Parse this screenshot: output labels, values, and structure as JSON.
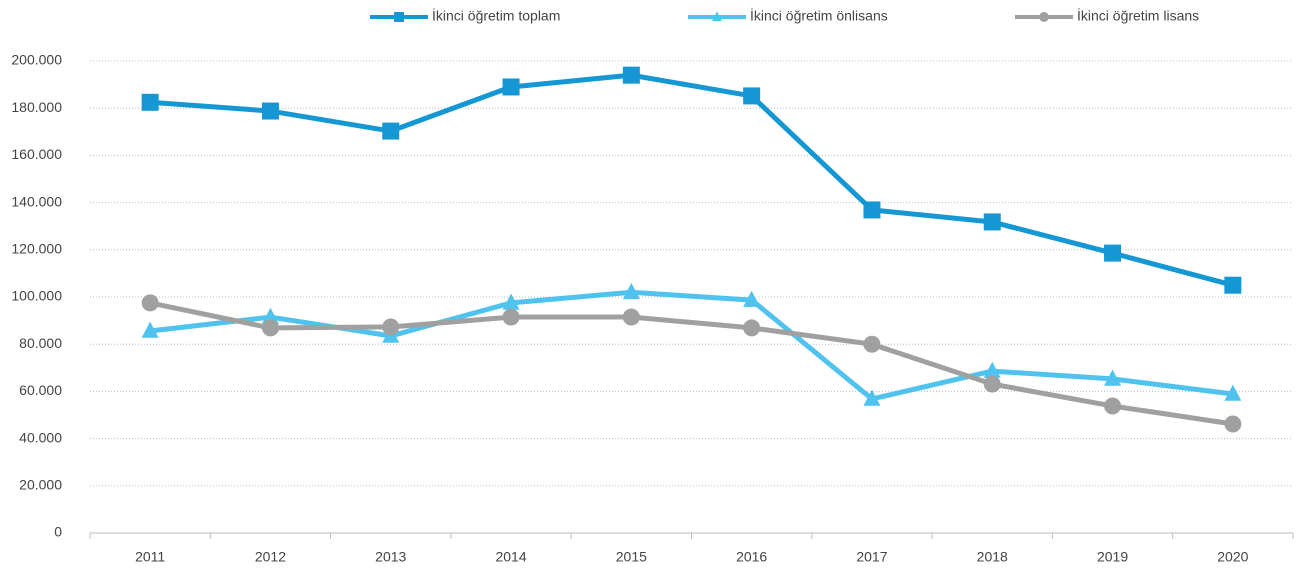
{
  "chart_data": {
    "type": "line",
    "categories": [
      "2011",
      "2012",
      "2013",
      "2014",
      "2015",
      "2016",
      "2017",
      "2018",
      "2019",
      "2020"
    ],
    "series": [
      {
        "name": "İkinci öğretim toplam",
        "color": "#1597d4",
        "marker": "square",
        "values": [
          182500,
          178800,
          170300,
          189000,
          194000,
          185200,
          136900,
          131800,
          118600,
          105000
        ]
      },
      {
        "name": "İkinci öğretim önlisans",
        "color": "#4fc3ee",
        "marker": "triangle",
        "values": [
          85600,
          91500,
          83500,
          97500,
          102000,
          98700,
          56800,
          68600,
          65300,
          58900
        ]
      },
      {
        "name": "İkinci öğretim lisans",
        "color": "#a0a0a0",
        "marker": "circle",
        "values": [
          97500,
          86900,
          87300,
          91500,
          91500,
          86900,
          80000,
          63100,
          53800,
          46200
        ]
      }
    ],
    "ylim": [
      0,
      200000
    ],
    "yticks": [
      0,
      {
        "value": 20000,
        "label": "20.000"
      },
      {
        "value": 40000,
        "label": "40.000"
      },
      {
        "value": 60000,
        "label": "60.000"
      },
      {
        "value": 80000,
        "label": "80.000"
      },
      {
        "value": 100000,
        "label": "100.000"
      },
      {
        "value": 120000,
        "label": "120.000"
      },
      {
        "value": 140000,
        "label": "140.000"
      },
      {
        "value": 160000,
        "label": "160.000"
      },
      {
        "value": 180000,
        "label": "180.000"
      },
      {
        "value": 200000,
        "label": "200.000"
      }
    ],
    "grid": true,
    "legend": "top"
  }
}
